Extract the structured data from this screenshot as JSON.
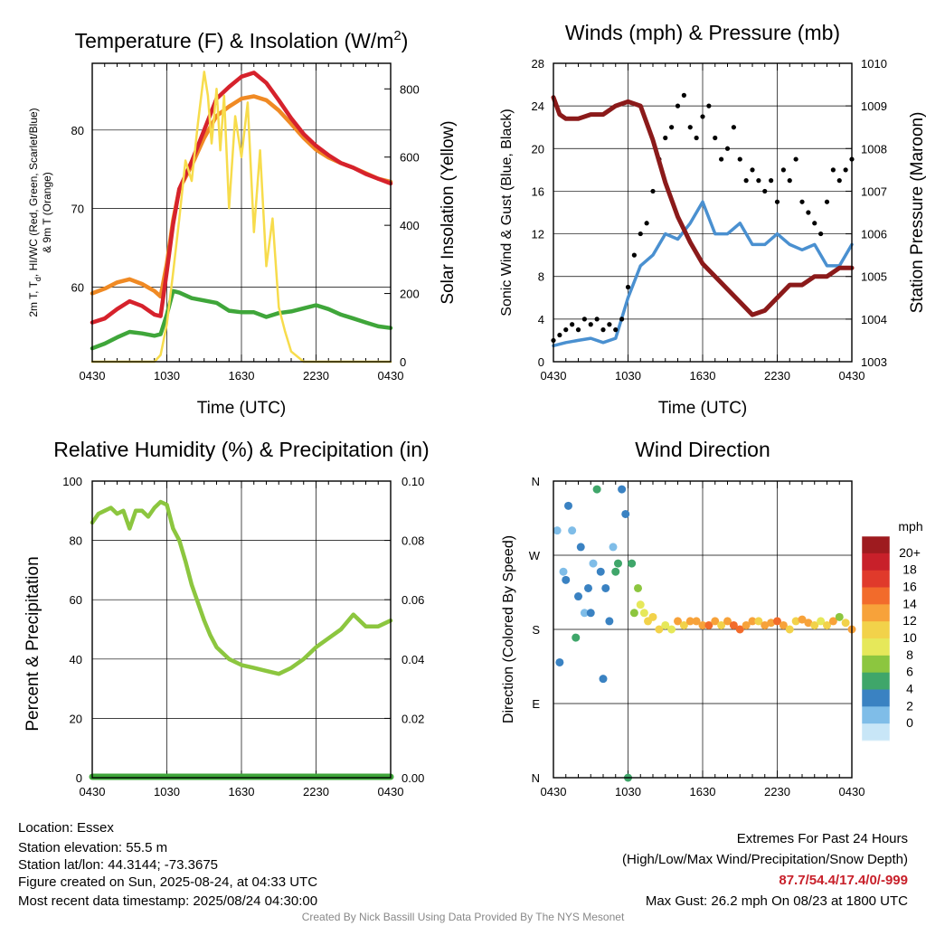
{
  "chart_data": [
    {
      "type": "line",
      "title": "Temperature (F) & Insolation (W/m",
      "title_sup": "2",
      "title_end": ")",
      "xlabel": "Time (UTC)",
      "ylabel_left": "2m T, T",
      "ylabel_left_sub": "d",
      "ylabel_left_rest": ", HI/WC (Red, Green, Scarlet/Blue)",
      "ylabel_left_line2": "& 9m T (Orange)",
      "ylabel_right": "Solar Insolation (Yellow)",
      "x_ticks": [
        "0430",
        "1030",
        "1630",
        "2230",
        "0430"
      ],
      "x_range_hours": [
        0,
        24
      ],
      "ylim_left": [
        50.5,
        88.5
      ],
      "yticks_left": [
        60,
        70,
        80
      ],
      "ylim_right": [
        0,
        875
      ],
      "yticks_right": [
        0,
        200,
        400,
        600,
        800
      ],
      "grid": true,
      "series": [
        {
          "color": "#f08a24",
          "axis": "left",
          "x": [
            0,
            1,
            2,
            3,
            4,
            5,
            5.5,
            6,
            6.5,
            7,
            8,
            9,
            10,
            11,
            12,
            13,
            14,
            15,
            16,
            17,
            18,
            19,
            20,
            21,
            22,
            23,
            24
          ],
          "y": [
            59.2,
            59.8,
            60.6,
            61,
            60.4,
            59.5,
            58.8,
            63,
            68.5,
            72.5,
            75.5,
            79,
            81.8,
            83,
            84,
            84.3,
            83.8,
            82.5,
            80.8,
            79,
            77.5,
            76.5,
            75.8,
            75.2,
            74.5,
            73.8,
            73.4
          ]
        },
        {
          "color": "#d6222c",
          "axis": "left",
          "x": [
            0,
            1,
            2,
            3,
            4,
            5,
            5.5,
            6,
            6.5,
            7,
            8,
            9,
            10,
            11,
            12,
            13,
            14,
            15,
            16,
            17,
            18,
            19,
            20,
            21,
            22,
            23,
            24
          ],
          "y": [
            55.5,
            56,
            57.2,
            58.2,
            57.6,
            56.5,
            56.3,
            62,
            68,
            72.5,
            76,
            80,
            84,
            85.5,
            86.8,
            87.3,
            86,
            83.8,
            81.5,
            79.5,
            78,
            76.8,
            75.8,
            75.2,
            74.4,
            73.8,
            73.2
          ]
        },
        {
          "color": "#3fa63a",
          "axis": "left",
          "x": [
            0,
            1,
            2,
            3,
            4,
            5,
            5.5,
            6,
            6.5,
            7,
            8,
            9,
            10,
            11,
            12,
            13,
            14,
            15,
            16,
            17,
            18,
            19,
            20,
            21,
            22,
            23,
            24
          ],
          "y": [
            52.2,
            52.8,
            53.6,
            54.3,
            54.1,
            53.8,
            54,
            56.5,
            59.5,
            59.3,
            58.6,
            58.3,
            58,
            57,
            56.8,
            56.8,
            56.2,
            56.7,
            56.9,
            57.3,
            57.7,
            57.2,
            56.5,
            56,
            55.5,
            55,
            54.8
          ]
        },
        {
          "color": "#f7dc4c",
          "axis": "right",
          "x": [
            0,
            1,
            2,
            3,
            4,
            5,
            5.5,
            6,
            6.5,
            7,
            7.5,
            8,
            8.5,
            9,
            9.3,
            9.6,
            10,
            10.3,
            10.6,
            11,
            11.5,
            12,
            12.5,
            13,
            13.5,
            14,
            14.5,
            15,
            15.5,
            16,
            17,
            24
          ],
          "y": [
            0,
            0,
            0,
            0,
            0,
            0,
            20,
            110,
            260,
            420,
            590,
            530,
            700,
            850,
            780,
            640,
            800,
            620,
            780,
            450,
            720,
            600,
            760,
            380,
            620,
            280,
            420,
            160,
            90,
            30,
            0,
            0
          ]
        }
      ]
    },
    {
      "type": "line",
      "title": "Winds (mph) & Pressure (mb)",
      "xlabel": "Time (UTC)",
      "ylabel_left": "Sonic Wind & Gust (Blue, Black)",
      "ylabel_right": "Station Pressure (Maroon)",
      "x_ticks": [
        "0430",
        "1030",
        "1630",
        "2230",
        "0430"
      ],
      "x_range_hours": [
        0,
        24
      ],
      "ylim_left": [
        0,
        28
      ],
      "yticks_left": [
        0,
        4,
        8,
        12,
        16,
        20,
        24,
        28
      ],
      "ylim_right": [
        1003,
        1010
      ],
      "yticks_right": [
        1003,
        1004,
        1005,
        1006,
        1007,
        1008,
        1009,
        1010
      ],
      "grid": true,
      "series": [
        {
          "color": "#8b1a1a",
          "axis": "right",
          "x": [
            0,
            0.5,
            1,
            2,
            3,
            4,
            5,
            6,
            7,
            8,
            9,
            10,
            11,
            12,
            13,
            14,
            15,
            16,
            17,
            18,
            19,
            20,
            21,
            22,
            23,
            24
          ],
          "y": [
            1009.2,
            1008.8,
            1008.7,
            1008.7,
            1008.8,
            1008.8,
            1009,
            1009.1,
            1009,
            1008.2,
            1007.2,
            1006.4,
            1005.8,
            1005.3,
            1005,
            1004.7,
            1004.4,
            1004.1,
            1004.2,
            1004.5,
            1004.8,
            1004.8,
            1005,
            1005,
            1005.2,
            1005.2
          ]
        },
        {
          "color": "#4a90d0",
          "axis": "left",
          "x": [
            0,
            1,
            2,
            3,
            4,
            5,
            6,
            7,
            8,
            9,
            10,
            11,
            12,
            13,
            14,
            15,
            16,
            17,
            18,
            19,
            20,
            21,
            22,
            23,
            24
          ],
          "y": [
            1.5,
            1.8,
            2,
            2.2,
            1.8,
            2.2,
            6,
            9,
            10,
            12,
            11.5,
            13,
            15,
            12,
            12,
            13,
            11,
            11,
            12,
            11,
            10.5,
            11,
            9,
            9,
            11
          ]
        }
      ],
      "scatter_gust": {
        "color": "#000000",
        "x": [
          0,
          0.5,
          1,
          1.5,
          2,
          2.5,
          3,
          3.5,
          4,
          4.5,
          5,
          5.5,
          6,
          6.5,
          7,
          7.5,
          8,
          8.5,
          9,
          9.5,
          10,
          10.5,
          11,
          11.5,
          12,
          12.5,
          13,
          13.5,
          14,
          14.5,
          15,
          15.5,
          16,
          16.5,
          17,
          17.5,
          18,
          18.5,
          19,
          19.5,
          20,
          20.5,
          21,
          21.5,
          22,
          22.5,
          23,
          23.5,
          24
        ],
        "y": [
          2,
          2.5,
          3,
          3.5,
          3,
          4,
          3.5,
          4,
          3,
          3.5,
          3,
          4,
          7,
          10,
          12,
          13,
          16,
          19,
          21,
          22,
          24,
          25,
          22,
          21,
          23,
          24,
          21,
          19,
          20,
          22,
          19,
          17,
          18,
          17,
          16,
          17,
          15,
          18,
          17,
          19,
          15,
          14,
          13,
          12,
          15,
          18,
          17,
          18,
          19
        ]
      }
    },
    {
      "type": "line",
      "title": "Relative Humidity (%) & Precipitation (in)",
      "xlabel": "",
      "ylabel_left": "Percent & Precipitation",
      "ylabel_right": "",
      "x_ticks": [
        "0430",
        "1030",
        "1630",
        "2230",
        "0430"
      ],
      "x_range_hours": [
        0,
        24
      ],
      "ylim_left": [
        0,
        100
      ],
      "yticks_left": [
        0,
        20,
        40,
        60,
        80,
        100
      ],
      "ylim_right": [
        0,
        0.1
      ],
      "yticks_right": [
        "0.00",
        "0.02",
        "0.04",
        "0.06",
        "0.08",
        "0.10"
      ],
      "grid": true,
      "series": [
        {
          "color": "#8cc63f",
          "axis": "left",
          "x": [
            0,
            0.5,
            1,
            1.5,
            2,
            2.5,
            3,
            3.5,
            4,
            4.5,
            5,
            5.5,
            6,
            6.5,
            7,
            7.5,
            8,
            8.5,
            9,
            9.5,
            10,
            11,
            12,
            13,
            14,
            15,
            16,
            17,
            18,
            19,
            20,
            21,
            22,
            23,
            24
          ],
          "y": [
            86,
            89,
            90,
            91,
            89,
            90,
            84,
            90,
            90,
            88,
            91,
            93,
            92,
            84,
            80,
            73,
            65,
            59,
            53,
            48,
            44,
            40,
            38,
            37,
            36,
            35,
            37,
            40,
            44,
            47,
            50,
            55,
            51,
            51,
            53
          ]
        },
        {
          "color": "#3fa63a",
          "axis": "left",
          "x": [
            0,
            24
          ],
          "y": [
            0.3,
            0.3
          ]
        }
      ]
    },
    {
      "type": "scatter",
      "title": "Wind Direction",
      "xlabel": "",
      "ylabel_left": "Direction (Colored By Speed)",
      "x_ticks": [
        "0430",
        "1030",
        "1630",
        "2230",
        "0430"
      ],
      "x_range_hours": [
        0,
        24
      ],
      "ylim": [
        0,
        360
      ],
      "yticks": [
        "N",
        "E",
        "S",
        "W",
        "N"
      ],
      "grid": true,
      "legend_title": "mph",
      "legend_labels": [
        "20+",
        "18",
        "16",
        "14",
        "12",
        "10",
        "8",
        "6",
        "4",
        "2",
        "0"
      ],
      "legend_colors": [
        "#9e1b1f",
        "#c8202a",
        "#e03a2b",
        "#f26b2b",
        "#f7a23a",
        "#f2d24a",
        "#e6e85a",
        "#8cc63f",
        "#3fa66a",
        "#3a82c2",
        "#7fbde8",
        "#c8e6f7"
      ],
      "points": {
        "x": [
          0.3,
          0.5,
          0.8,
          1.0,
          1.2,
          1.5,
          1.8,
          2.0,
          2.2,
          2.5,
          2.8,
          3.0,
          3.2,
          3.5,
          3.8,
          4.0,
          4.2,
          4.5,
          4.8,
          5.0,
          5.2,
          5.5,
          5.8,
          6.0,
          6.3,
          6.5,
          6.8,
          7.0,
          7.3,
          7.6,
          8.0,
          8.5,
          9.0,
          9.5,
          10.0,
          10.5,
          11.0,
          11.5,
          12.0,
          12.5,
          13.0,
          13.5,
          14.0,
          14.5,
          15.0,
          15.5,
          16.0,
          16.5,
          17.0,
          17.5,
          18.0,
          18.5,
          19.0,
          19.5,
          20.0,
          20.5,
          21.0,
          21.5,
          22.0,
          22.5,
          23.0,
          23.5,
          24.0
        ],
        "y": [
          300,
          140,
          250,
          240,
          330,
          300,
          170,
          220,
          280,
          200,
          230,
          200,
          260,
          350,
          250,
          120,
          230,
          190,
          280,
          250,
          260,
          350,
          320,
          0,
          260,
          200,
          230,
          210,
          200,
          190,
          195,
          180,
          185,
          180,
          190,
          185,
          190,
          190,
          185,
          185,
          190,
          185,
          190,
          185,
          180,
          185,
          190,
          190,
          185,
          188,
          190,
          185,
          180,
          190,
          192,
          188,
          185,
          190,
          185,
          190,
          195,
          188,
          180
        ],
        "speed": [
          1,
          2,
          1,
          3,
          2,
          1,
          4,
          2,
          3,
          1,
          2,
          3,
          1,
          4,
          3,
          2,
          2,
          3,
          1,
          4,
          4,
          3,
          2,
          4,
          5,
          6,
          7,
          8,
          9,
          10,
          11,
          10,
          9,
          8,
          12,
          11,
          13,
          12,
          12,
          14,
          13,
          11,
          12,
          14,
          15,
          13,
          12,
          11,
          12,
          13,
          14,
          12,
          10,
          11,
          13,
          12,
          10,
          9,
          11,
          12,
          7,
          10,
          12
        ]
      }
    }
  ],
  "info": {
    "location": "Location: Essex",
    "elevation": "Station elevation: 55.5 m",
    "latlon": "Station lat/lon: 44.3144; -73.3675",
    "created": "Figure created on Sun, 2025-08-24, at 04:33 UTC",
    "recent": "Most recent data timestamp: 2025/08/24 04:30:00"
  },
  "extremes": {
    "title": "Extremes For Past 24 Hours",
    "subtitle": "(High/Low/Max Wind/Precipitation/Snow Depth)",
    "values": "87.7/54.4/17.4/0/-999",
    "gust": "Max Gust: 26.2 mph On 08/23 at 1800 UTC"
  },
  "credit": "Created By Nick Bassill Using Data Provided By The NYS Mesonet"
}
